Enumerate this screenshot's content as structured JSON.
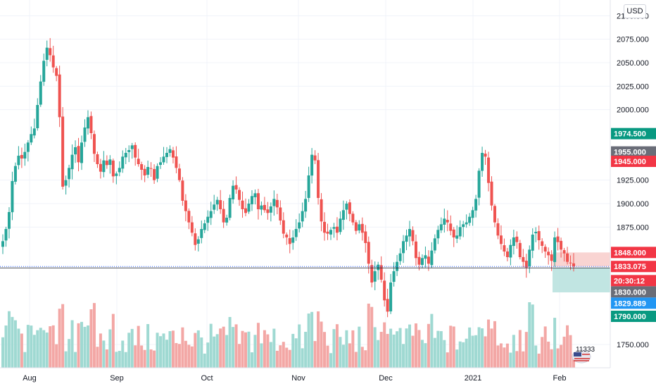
{
  "currency_label": "USD",
  "colors": {
    "up": "#26a69a",
    "down": "#ef5350",
    "up_volume": "#9fd9d2",
    "down_volume": "#f3a7a5",
    "grid": "#f0f3fa",
    "tag_green": "#089981",
    "tag_gray": "#6a6d78",
    "tag_red": "#f23645",
    "tag_blue": "#2196f3",
    "tag_black": "#131722",
    "zone_red": "#f7c9c7",
    "zone_green": "#b2dfdb"
  },
  "chart_data": {
    "type": "candlestick",
    "y_ticks": [
      "2100.000",
      "2075.000",
      "2050.000",
      "2025.000",
      "2000.000",
      "1925.000",
      "1900.000",
      "1875.000",
      "1750.000"
    ],
    "x_ticks": [
      "Aug",
      "Sep",
      "Oct",
      "Nov",
      "Dec",
      "2021",
      "Feb"
    ],
    "ylim": [
      1738,
      2104
    ],
    "price_tags": [
      {
        "label": "1974.500",
        "value": 1974.5,
        "color": "tag_green"
      },
      {
        "label": "1955.000",
        "value": 1955.0,
        "color": "tag_gray"
      },
      {
        "label": "1945.000",
        "value": 1945.0,
        "color": "tag_red"
      },
      {
        "label": "1848.000",
        "value": 1848.0,
        "color": "tag_red"
      },
      {
        "label": "1833.075",
        "value": 1833.075,
        "color": "tag_red"
      },
      {
        "label": "20:30:12",
        "value": 1818.0,
        "color": "tag_red"
      },
      {
        "label": "1830.000",
        "value": 1806.0,
        "color": "tag_gray"
      },
      {
        "label": "1829.889",
        "value": 1794.0,
        "color": "tag_blue"
      },
      {
        "label": "1790.000",
        "value": 1780.0,
        "color": "tag_green"
      }
    ],
    "current_price": 1833.075,
    "zones": {
      "red": {
        "from": 1833.075,
        "to": 1848.0
      },
      "green": {
        "from": 1805.5,
        "to": 1831.5
      }
    },
    "volume_label": "11333",
    "closes": [
      1860,
      1873,
      1891,
      1924,
      1940,
      1951,
      1948,
      1955,
      1965,
      1974,
      1980,
      2005,
      2030,
      2052,
      2066,
      2058,
      2045,
      2036,
      1992,
      1918,
      1925,
      1938,
      1952,
      1960,
      1944,
      1965,
      1981,
      1992,
      1975,
      1953,
      1942,
      1934,
      1946,
      1941,
      1947,
      1929,
      1932,
      1938,
      1950,
      1954,
      1957,
      1962,
      1949,
      1942,
      1936,
      1930,
      1939,
      1937,
      1925,
      1940,
      1944,
      1950,
      1954,
      1958,
      1949,
      1938,
      1925,
      1903,
      1892,
      1880,
      1869,
      1856,
      1862,
      1873,
      1879,
      1886,
      1892,
      1899,
      1904,
      1894,
      1880,
      1885,
      1906,
      1919,
      1915,
      1904,
      1894,
      1890,
      1900,
      1908,
      1911,
      1894,
      1898,
      1893,
      1890,
      1897,
      1905,
      1896,
      1882,
      1868,
      1864,
      1857,
      1864,
      1873,
      1880,
      1892,
      1905,
      1930,
      1952,
      1946,
      1906,
      1881,
      1869,
      1868,
      1872,
      1875,
      1869,
      1884,
      1893,
      1900,
      1889,
      1880,
      1871,
      1878,
      1869,
      1858,
      1836,
      1816,
      1828,
      1835,
      1819,
      1797,
      1785,
      1816,
      1828,
      1838,
      1847,
      1860,
      1866,
      1873,
      1860,
      1842,
      1835,
      1842,
      1845,
      1836,
      1850,
      1863,
      1872,
      1878,
      1884,
      1880,
      1871,
      1864,
      1866,
      1875,
      1878,
      1880,
      1886,
      1893,
      1905,
      1935,
      1954,
      1950,
      1922,
      1898,
      1880,
      1866,
      1857,
      1849,
      1843,
      1856,
      1864,
      1859,
      1843,
      1838,
      1832,
      1851,
      1867,
      1870,
      1861,
      1855,
      1849,
      1845,
      1839,
      1864,
      1859,
      1851,
      1847,
      1838,
      1837,
      1833
    ]
  }
}
